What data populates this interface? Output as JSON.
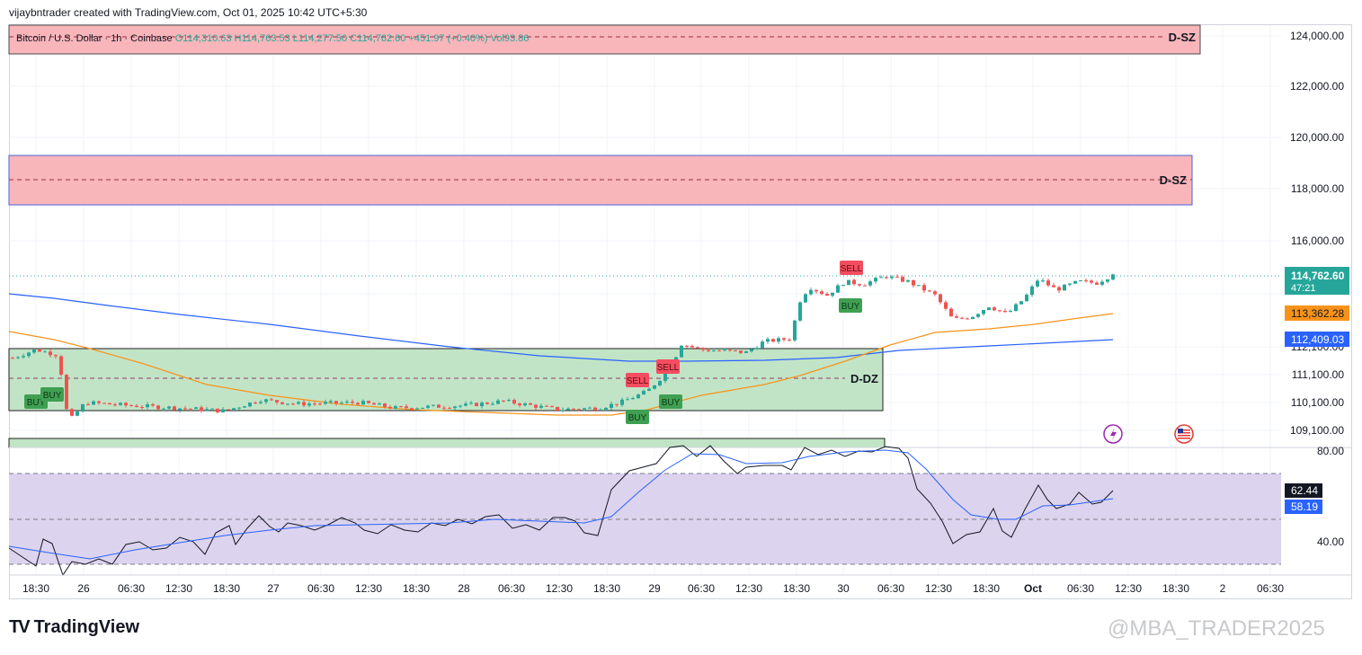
{
  "header": {
    "created_by": "vijaybntrader created with TradingView.com, Oct 01, 2025 10:42 UTC+5:30"
  },
  "symbol_bar": {
    "symbol": "Bitcoin / U.S. Dollar · 1h · Coinbase",
    "open": "O114,310.63",
    "high": "H114,763.53",
    "low": "L114,277.50",
    "close": "C114,762.60",
    "change": "+451.97 (+0.40%)",
    "volume": "Vol93.86"
  },
  "colors": {
    "up": "#26a69a",
    "down": "#ef5350",
    "ma_blue": "#2962ff",
    "ma_orange": "#f7931a",
    "supply_zone": "#f8b6bb",
    "demand_zone": "#c2e4c6",
    "rsi_band": "#dcd3ee"
  },
  "footer": {
    "brand": "TradingView",
    "watermark": "@MBA_TRADER2025"
  },
  "chart_data": {
    "type": "candlestick",
    "price_axis": {
      "labels": [
        "124,000.00",
        "122,000.00",
        "120,000.00",
        "118,000.00",
        "116,000.00",
        "112,100.00",
        "111,100.00",
        "110,100.00",
        "109,100.00"
      ],
      "last_price": "114,762.60",
      "countdown": "47:21",
      "ma_orange_value": "113,362.28",
      "ma_blue_value": "112,409.03"
    },
    "time_axis": {
      "labels": [
        "18:30",
        "26",
        "06:30",
        "12:30",
        "18:30",
        "27",
        "06:30",
        "12:30",
        "18:30",
        "28",
        "06:30",
        "12:30",
        "18:30",
        "29",
        "06:30",
        "12:30",
        "18:30",
        "30",
        "06:30",
        "12:30",
        "18:30",
        "Oct",
        "06:30",
        "12:30",
        "18:30",
        "2",
        "06:30"
      ]
    },
    "zones": [
      {
        "label": "D-SZ",
        "from": 123700,
        "to": 124250
      },
      {
        "label": "D-SZ",
        "from": 117450,
        "to": 119350
      },
      {
        "label": "D-DZ",
        "from": 109800,
        "to": 111850,
        "mid": 110950
      }
    ],
    "signals": [
      {
        "text": "BUY",
        "type": "buy"
      },
      {
        "text": "BUY",
        "type": "buy"
      },
      {
        "text": "SELL",
        "type": "sell"
      },
      {
        "text": "SELL",
        "type": "sell"
      },
      {
        "text": "BUY",
        "type": "buy"
      },
      {
        "text": "BUY",
        "type": "buy"
      },
      {
        "text": "SELL",
        "type": "sell"
      },
      {
        "text": "BUY",
        "type": "buy"
      }
    ],
    "rsi": {
      "labels": [
        "80.00",
        "40.00"
      ],
      "value": "62.44",
      "signal": "58.19"
    }
  }
}
